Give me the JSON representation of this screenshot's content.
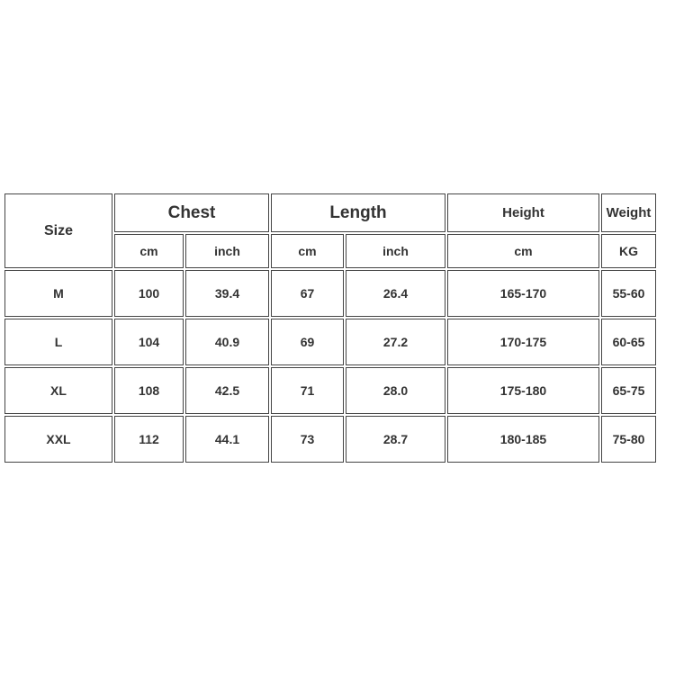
{
  "header": {
    "size": "Size",
    "chest": "Chest",
    "length": "Length",
    "height": "Height",
    "weight": "Weight",
    "units": [
      "cm",
      "inch",
      "cm",
      "inch",
      "cm",
      "KG"
    ]
  },
  "rows": [
    [
      "M",
      "100",
      "39.4",
      "67",
      "26.4",
      "165-170",
      "55-60"
    ],
    [
      "L",
      "104",
      "40.9",
      "69",
      "27.2",
      "170-175",
      "60-65"
    ],
    [
      "XL",
      "108",
      "42.5",
      "71",
      "28.0",
      "175-180",
      "65-75"
    ],
    [
      "XXL",
      "112",
      "44.1",
      "73",
      "28.7",
      "180-185",
      "75-80"
    ]
  ]
}
